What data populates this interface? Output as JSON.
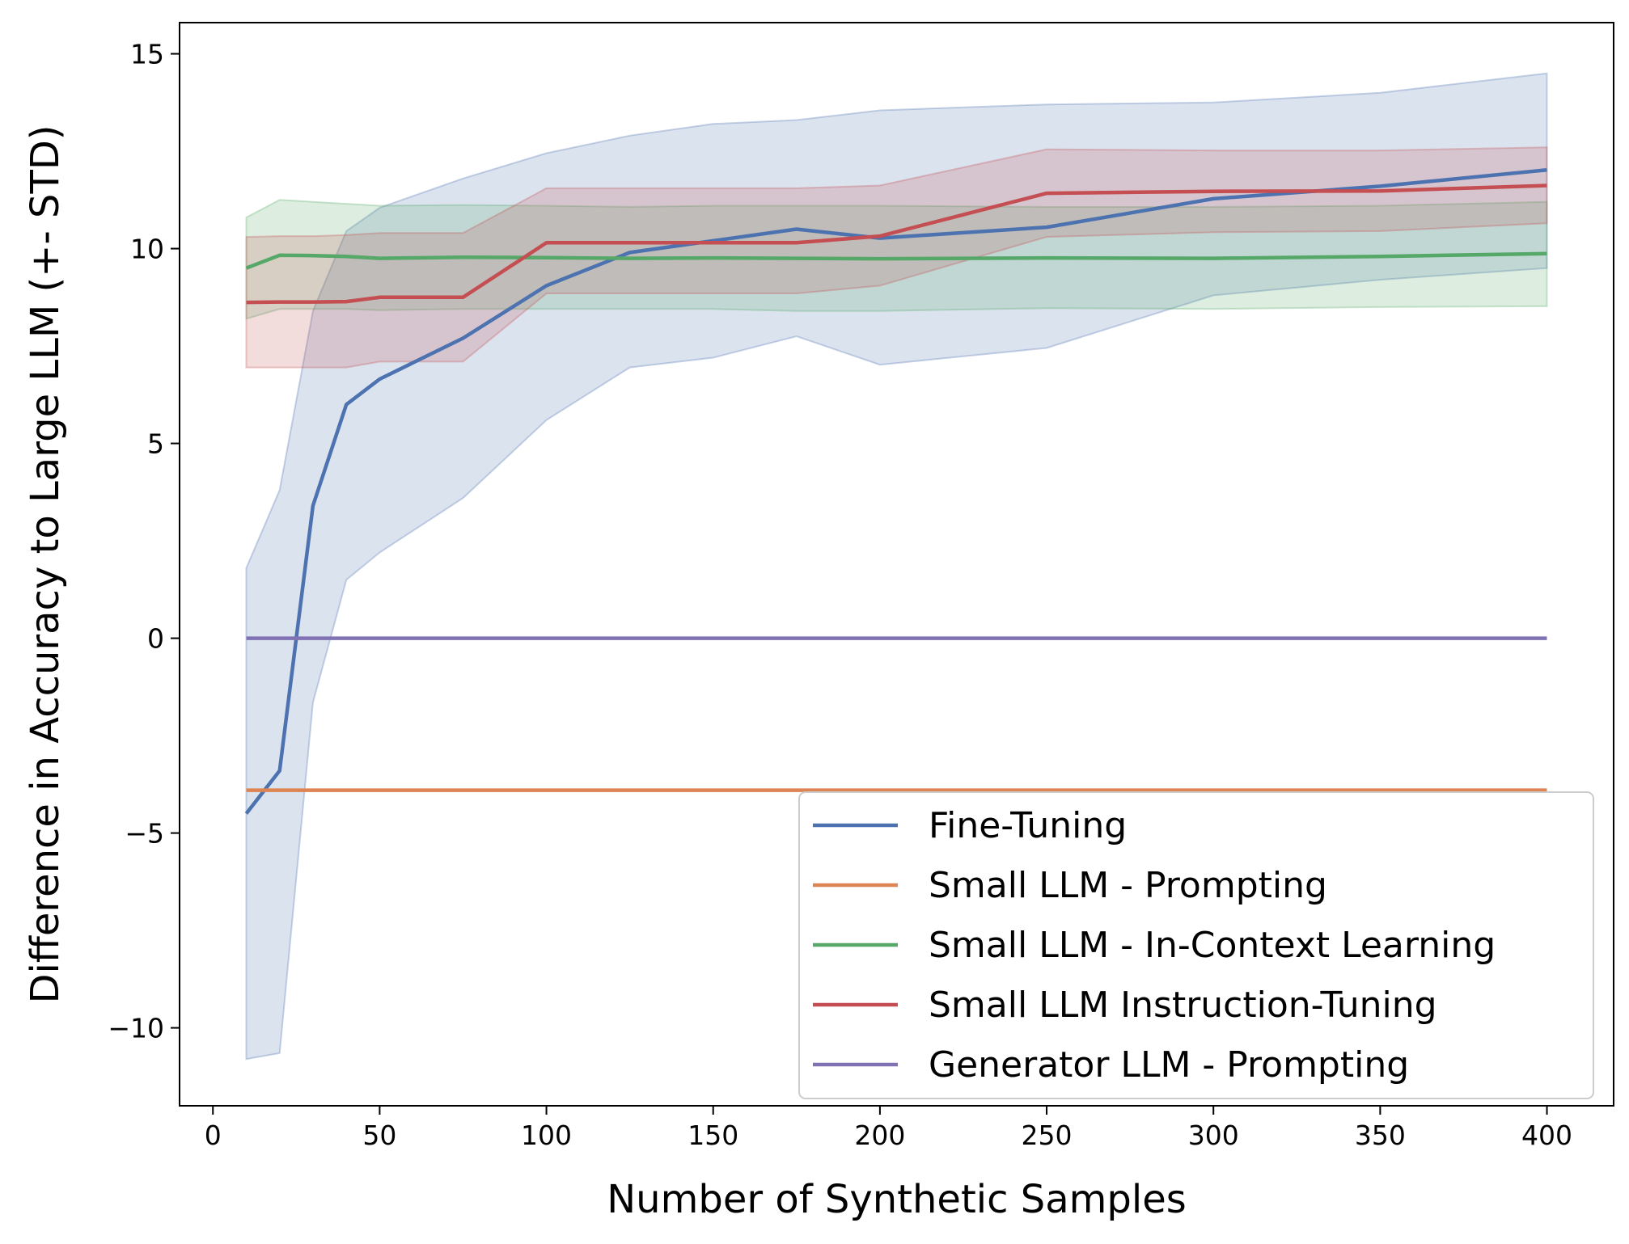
{
  "chart_data": {
    "type": "line",
    "title": "",
    "xlabel": "Number of Synthetic Samples",
    "ylabel": "Difference in Accuracy to Large LLM (+- STD)",
    "xlim": [
      -10,
      420
    ],
    "ylim": [
      -12.0,
      15.8
    ],
    "xticks": [
      0,
      50,
      100,
      150,
      200,
      250,
      300,
      350,
      400
    ],
    "yticks": [
      -10,
      -5,
      0,
      5,
      10,
      15
    ],
    "x_tick_labels": [
      "0",
      "50",
      "100",
      "150",
      "200",
      "250",
      "300",
      "350",
      "400"
    ],
    "y_tick_labels": [
      "−10",
      "−5",
      "0",
      "5",
      "10",
      "15"
    ],
    "grid": false,
    "legend_position": "lower-right",
    "series": [
      {
        "name": "Fine-Tuning",
        "color": "#4c72b0",
        "x": [
          10,
          20,
          30,
          40,
          50,
          75,
          100,
          125,
          150,
          175,
          200,
          250,
          300,
          350,
          400
        ],
        "values": [
          -4.5,
          -3.4,
          3.4,
          6.0,
          6.65,
          7.7,
          9.05,
          9.9,
          10.2,
          10.5,
          10.27,
          10.55,
          11.28,
          11.6,
          12.02
        ],
        "lower": [
          -10.8,
          -10.65,
          -1.65,
          1.5,
          2.2,
          3.6,
          5.6,
          6.95,
          7.2,
          7.75,
          7.02,
          7.45,
          8.8,
          9.2,
          9.5
        ],
        "upper": [
          1.8,
          3.8,
          8.4,
          10.45,
          11.05,
          11.8,
          12.45,
          12.9,
          13.2,
          13.3,
          13.55,
          13.7,
          13.75,
          14.0,
          14.5
        ]
      },
      {
        "name": "Small LLM - Prompting",
        "color": "#dd8452",
        "x": [
          10,
          400
        ],
        "values": [
          -3.9,
          -3.9
        ]
      },
      {
        "name": "Small LLM - In-Context Learning",
        "color": "#55a868",
        "x": [
          10,
          20,
          30,
          40,
          50,
          75,
          100,
          125,
          150,
          175,
          200,
          250,
          300,
          350,
          400
        ],
        "values": [
          9.5,
          9.83,
          9.82,
          9.8,
          9.75,
          9.78,
          9.77,
          9.75,
          9.76,
          9.75,
          9.74,
          9.76,
          9.75,
          9.8,
          9.87
        ],
        "lower": [
          8.2,
          8.45,
          8.45,
          8.45,
          8.42,
          8.45,
          8.45,
          8.45,
          8.45,
          8.4,
          8.4,
          8.47,
          8.45,
          8.5,
          8.52
        ],
        "upper": [
          10.8,
          11.25,
          11.2,
          11.15,
          11.1,
          11.12,
          11.1,
          11.07,
          11.1,
          11.1,
          11.1,
          11.07,
          11.07,
          11.1,
          11.2
        ]
      },
      {
        "name": "Small LLM Instruction-Tuning",
        "color": "#c44e52",
        "x": [
          10,
          20,
          30,
          40,
          50,
          75,
          100,
          125,
          150,
          175,
          200,
          250,
          300,
          350,
          400
        ],
        "values": [
          8.62,
          8.63,
          8.63,
          8.64,
          8.75,
          8.75,
          10.15,
          10.15,
          10.15,
          10.15,
          10.32,
          11.42,
          11.47,
          11.48,
          11.62
        ],
        "lower": [
          6.95,
          6.95,
          6.95,
          6.95,
          7.1,
          7.1,
          8.85,
          8.85,
          8.85,
          8.85,
          9.05,
          10.3,
          10.42,
          10.45,
          10.65
        ],
        "upper": [
          10.3,
          10.32,
          10.32,
          10.35,
          10.4,
          10.4,
          11.55,
          11.55,
          11.55,
          11.55,
          11.62,
          12.55,
          12.52,
          12.52,
          12.6
        ]
      },
      {
        "name": "Generator LLM - Prompting",
        "color": "#8172b3",
        "x": [
          10,
          400
        ],
        "values": [
          0,
          0
        ]
      }
    ]
  }
}
